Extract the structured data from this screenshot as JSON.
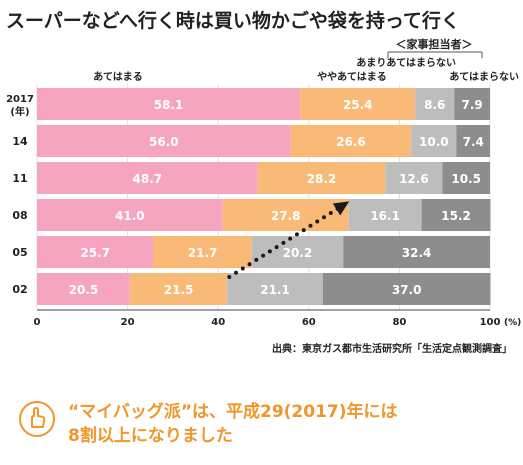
{
  "chart_data": {
    "type": "bar",
    "orientation": "horizontal",
    "stacked": true,
    "title": "スーパーなどへ行く時は買い物かごや袋を持って行く",
    "legend_group_label": "＜家事担当者＞",
    "categories": [
      "2017\n(年)",
      "14",
      "11",
      "08",
      "05",
      "02"
    ],
    "series": [
      {
        "name": "あてはまる",
        "color": "#f6a5bf",
        "values": [
          58.1,
          56.0,
          48.7,
          41.0,
          25.7,
          20.5
        ]
      },
      {
        "name": "ややあてはまる",
        "color": "#f9b977",
        "values": [
          25.4,
          26.6,
          28.2,
          27.8,
          21.7,
          21.5
        ]
      },
      {
        "name": "あまりあてはまらない",
        "color": "#bdbdbd",
        "values": [
          8.6,
          10.0,
          12.6,
          16.1,
          20.2,
          21.1
        ]
      },
      {
        "name": "あてはまらない",
        "color": "#8d8d8d",
        "values": [
          7.9,
          7.4,
          10.5,
          15.2,
          32.4,
          37.0
        ]
      }
    ],
    "xlim": [
      0,
      100
    ],
    "xticks": [
      "0",
      "20",
      "40",
      "60",
      "80",
      "100"
    ],
    "x_unit": "(%)",
    "annotation": "dotted arrow rising from 02 to 08 across the boundary between ややあてはまる and あまりあてはまらない"
  },
  "source": "出典：東京ガス都市生活研究所「生活定点観測調査」",
  "note": {
    "line1": "“マイバッグ派”は、平成29(2017)年には",
    "line2": "8割以上になりました",
    "icon": "pointing-hand-icon",
    "color": "#f0962a"
  }
}
